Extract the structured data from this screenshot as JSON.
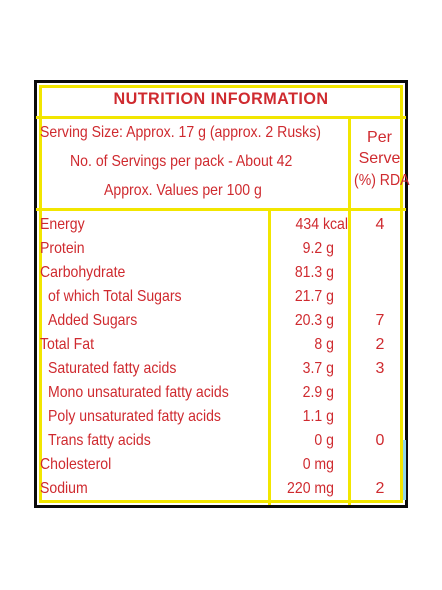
{
  "panel": {
    "title": "NUTRITION INFORMATION",
    "serving_size": "Serving Size: Approx. 17 g (approx. 2 Rusks)",
    "servings_per_pack": "No. of Servings per pack - About 42",
    "values_basis": "Approx. Values per 100 g",
    "rda_header": {
      "line1": "Per",
      "line2": "Serve",
      "line3": "(%) RDA"
    }
  },
  "nutrients": [
    {
      "name": "Energy",
      "value": "434 kcal",
      "rda": "4"
    },
    {
      "name": "Protein",
      "value": "9.2 g",
      "rda": ""
    },
    {
      "name": "Carbohydrate",
      "value": "81.3 g",
      "rda": ""
    },
    {
      "name": "of which Total Sugars",
      "value": "21.7 g",
      "rda": ""
    },
    {
      "name": "Added Sugars",
      "value": "20.3 g",
      "rda": "7"
    },
    {
      "name": "Total Fat",
      "value": "8 g",
      "rda": "2"
    },
    {
      "name": "Saturated fatty acids",
      "value": "3.7 g",
      "rda": "3"
    },
    {
      "name": "Mono unsaturated fatty acids",
      "value": "2.9 g",
      "rda": ""
    },
    {
      "name": "Poly unsaturated fatty acids",
      "value": "1.1 g",
      "rda": ""
    },
    {
      "name": "Trans fatty acids",
      "value": "0 g",
      "rda": "0"
    },
    {
      "name": "Cholesterol",
      "value": "0 mg",
      "rda": ""
    },
    {
      "name": "Sodium",
      "value": "220 mg",
      "rda": "2"
    }
  ],
  "colors": {
    "text": "#cf2a2f",
    "rule": "#f2e600",
    "border": "#0b0b0b"
  }
}
